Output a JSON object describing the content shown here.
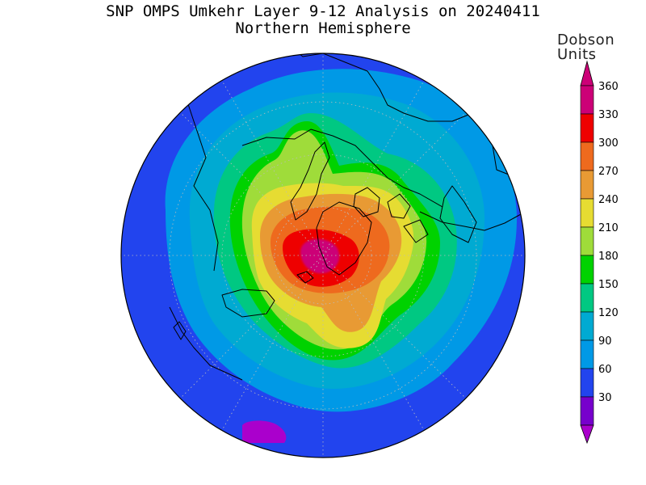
{
  "title": {
    "line1": "SNP OMPS Umkehr Layer 9-12 Analysis on 20240411",
    "line2": "Northern Hemisphere"
  },
  "colorbar": {
    "units_line1": "Dobson",
    "units_line2": "Units",
    "levels": [
      {
        "label": "360",
        "color": "#cc0077"
      },
      {
        "label": "330",
        "color": "#ee0000"
      },
      {
        "label": "300",
        "color": "#ee6a1e"
      },
      {
        "label": "270",
        "color": "#e89a34"
      },
      {
        "label": "240",
        "color": "#e6dc32"
      },
      {
        "label": "210",
        "color": "#9fdc3a"
      },
      {
        "label": "180",
        "color": "#00d200"
      },
      {
        "label": "150",
        "color": "#00c882"
      },
      {
        "label": "120",
        "color": "#00aad2"
      },
      {
        "label": "90",
        "color": "#0099e6"
      },
      {
        "label": "60",
        "color": "#2244ee"
      },
      {
        "label": "30",
        "color": "#7700cc"
      }
    ],
    "over_color": "#cc0077",
    "under_color": "#aa00cc"
  },
  "map": {
    "projection": "north polar stereographic",
    "hemisphere_fill_color": "#2244ee",
    "coastline_color": "#000000",
    "grid_color": "#bbbbbb"
  }
}
